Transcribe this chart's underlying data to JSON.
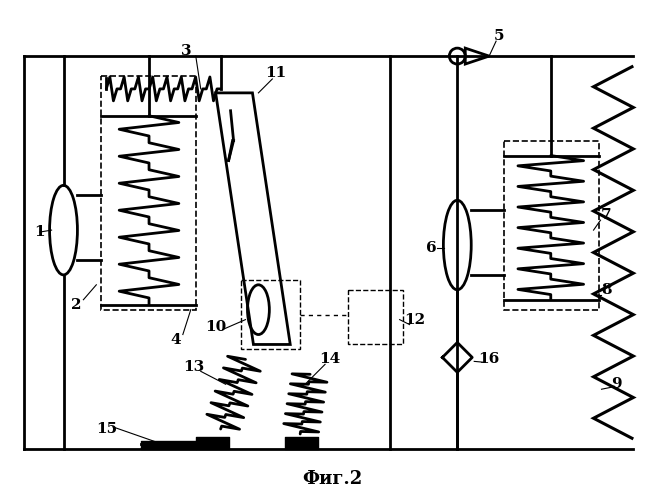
{
  "title": "Фиг.2",
  "bg_color": "#ffffff",
  "line_color": "#000000",
  "fig_width": 6.65,
  "fig_height": 5.0,
  "dpi": 100
}
